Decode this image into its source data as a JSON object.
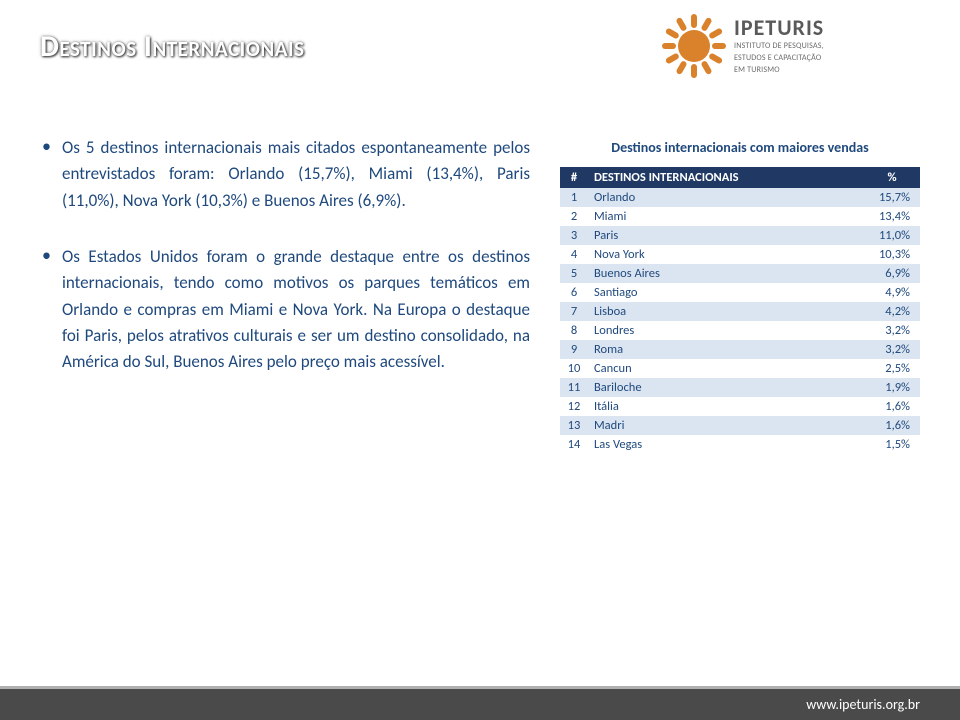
{
  "title": "Destinos Internacionais",
  "logo": {
    "brand": "IPETURIS",
    "tagline1": "INSTITUTO DE PESQUISAS,",
    "tagline2": "ESTUDOS E CAPACITAÇÃO",
    "tagline3": "EM TURISMO",
    "sun_color": "#d9822b",
    "ray_count": 12
  },
  "paragraphs": {
    "p1": "Os 5 destinos internacionais mais citados espontaneamente pelos entrevistados foram: Orlando (15,7%), Miami (13,4%), Paris (11,0%), Nova York (10,3%) e Buenos Aires (6,9%).",
    "p2": "Os Estados Unidos foram o grande destaque entre os destinos internacionais, tendo como motivos os parques temáticos em Orlando e compras em Miami e Nova York. Na Europa o destaque foi Paris, pelos atrativos culturais e ser um destino consolidado, na América do Sul, Buenos Aires pelo preço mais acessível."
  },
  "table": {
    "caption": "Destinos internacionais com maiores vendas",
    "headers": {
      "num": "#",
      "name": "DESTINOS INTERNACIONAIS",
      "pct": "%"
    },
    "rows": [
      {
        "n": "1",
        "name": "Orlando",
        "pct": "15,7%"
      },
      {
        "n": "2",
        "name": "Miami",
        "pct": "13,4%"
      },
      {
        "n": "3",
        "name": "Paris",
        "pct": "11,0%"
      },
      {
        "n": "4",
        "name": "Nova York",
        "pct": "10,3%"
      },
      {
        "n": "5",
        "name": "Buenos Aires",
        "pct": "6,9%"
      },
      {
        "n": "6",
        "name": "Santiago",
        "pct": "4,9%"
      },
      {
        "n": "7",
        "name": "Lisboa",
        "pct": "4,2%"
      },
      {
        "n": "8",
        "name": "Londres",
        "pct": "3,2%"
      },
      {
        "n": "9",
        "name": "Roma",
        "pct": "3,2%"
      },
      {
        "n": "10",
        "name": "Cancun",
        "pct": "2,5%"
      },
      {
        "n": "11",
        "name": "Bariloche",
        "pct": "1,9%"
      },
      {
        "n": "12",
        "name": "Itália",
        "pct": "1,6%"
      },
      {
        "n": "13",
        "name": "Madri",
        "pct": "1,6%"
      },
      {
        "n": "14",
        "name": "Las Vegas",
        "pct": "1,5%"
      }
    ],
    "header_bg": "#1f3864",
    "band_bg": "#dbe5f1",
    "text_color": "#1f497d"
  },
  "footer": {
    "url": "www.ipeturis.org.br"
  },
  "colors": {
    "title_shadow": "#000000",
    "body_text": "#1f497d",
    "footer_bg": "#4a4a4a",
    "footer_border": "#b0b0b0"
  }
}
